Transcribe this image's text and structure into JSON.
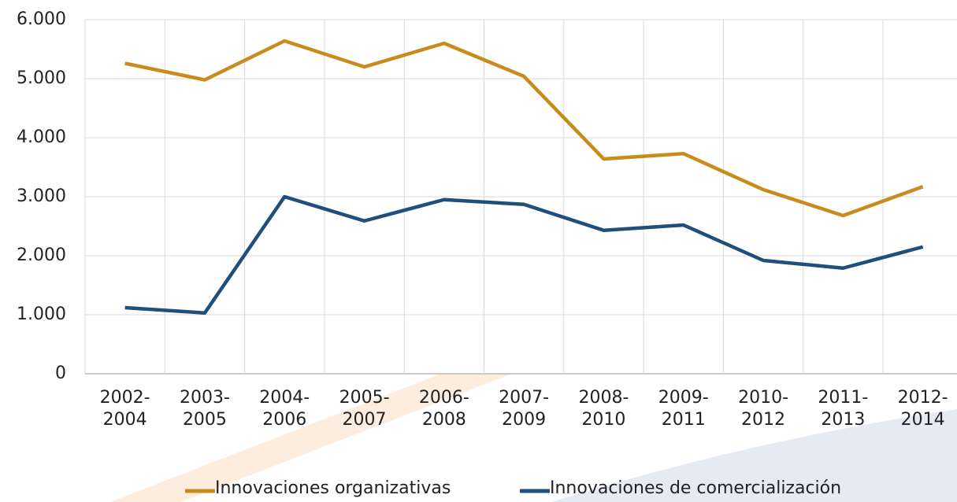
{
  "chart_data": {
    "type": "line",
    "categories": [
      "2002-\n2004",
      "2003-\n2005",
      "2004-\n2006",
      "2005-\n2007",
      "2006-\n2008",
      "2007-\n2009",
      "2008-\n2010",
      "2009-\n2011",
      "2010-\n2012",
      "2011-\n2013",
      "2012-\n2014"
    ],
    "series": [
      {
        "name": "Innovaciones organizativas",
        "color": "#c98b1c",
        "values": [
          5260,
          4980,
          5640,
          5200,
          5600,
          5040,
          3640,
          3730,
          3120,
          2680,
          3170
        ]
      },
      {
        "name": "Innovaciones de comercialización",
        "color": "#1f4f7a",
        "values": [
          1120,
          1030,
          3000,
          2590,
          2950,
          2870,
          2430,
          2520,
          1920,
          1790,
          2150
        ]
      }
    ],
    "ylim": [
      0,
      6000
    ],
    "yticks": [
      0,
      {
        "value": 1000,
        "label": "1.000"
      },
      {
        "value": 2000,
        "label": "2.000"
      },
      {
        "value": 3000,
        "label": "3.000"
      },
      {
        "value": 4000,
        "label": "4.000"
      },
      {
        "value": 5000,
        "label": "5.000"
      },
      {
        "value": 6000,
        "label": "6.000"
      }
    ],
    "grid": true,
    "legend": "bottom"
  }
}
